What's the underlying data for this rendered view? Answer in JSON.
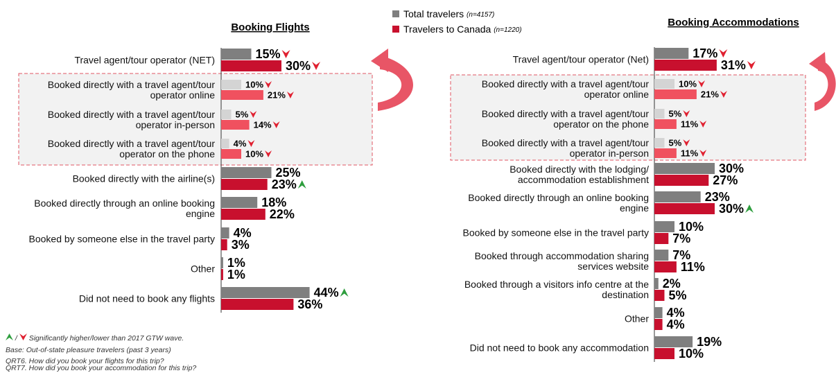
{
  "chart_data": [
    {
      "type": "bar",
      "orientation": "horizontal",
      "title": "Booking Flights",
      "categories": [
        "Travel agent/tour operator (NET)",
        "Booked directly with a travel agent/tour operator online",
        "Booked directly with a travel agent/tour operator in-person",
        "Booked directly with a travel agent/tour operator on the phone",
        "Booked directly with the airline(s)",
        "Booked directly through an online booking engine",
        "Booked by someone else in the travel party",
        "Other",
        "Did not need to book any flights"
      ],
      "highlight": [
        1,
        2,
        3
      ],
      "series": [
        {
          "name": "Total travelers",
          "n_label": "(n=4157)",
          "color": "#7f7f7f",
          "highlight_color": "#d4d4d4",
          "values": [
            15,
            10,
            5,
            4,
            25,
            18,
            4,
            1,
            44
          ],
          "value_labels": [
            "15%",
            "10%",
            "5%",
            "4%",
            "25%",
            "18%",
            "4%",
            "1%",
            "44%"
          ],
          "significance": [
            "lower",
            "lower",
            "lower",
            "lower",
            null,
            null,
            null,
            null,
            "higher"
          ]
        },
        {
          "name": "Travelers to Canada",
          "n_label": "(n=1220)",
          "color": "#c8102e",
          "highlight_color": "#f0515f",
          "values": [
            30,
            21,
            14,
            10,
            23,
            22,
            3,
            1,
            36
          ],
          "value_labels": [
            "30%",
            "21%",
            "14%",
            "10%",
            "23%",
            "22%",
            "3%",
            "1%",
            "36%"
          ],
          "significance": [
            "lower",
            "lower",
            "lower",
            "lower",
            "higher",
            null,
            null,
            null,
            null
          ]
        }
      ]
    },
    {
      "type": "bar",
      "orientation": "horizontal",
      "title": "Booking Accommodations",
      "categories": [
        "Travel agent/tour operator (Net)",
        "Booked directly with a travel agent/tour operator online",
        "Booked directly with a travel agent/tour operator on the phone",
        "Booked directly with a travel agent/tour operator in-person",
        "Booked directly with the lodging/ accommodation establishment",
        "Booked directly through an online booking engine",
        "Booked by someone else in the travel party",
        "Booked through accommodation sharing services website",
        "Booked through a visitors info centre at the destination",
        "Other",
        "Did not need to book any accommodation"
      ],
      "highlight": [
        1,
        2,
        3
      ],
      "series": [
        {
          "name": "Total travelers",
          "color": "#7f7f7f",
          "highlight_color": "#d4d4d4",
          "values": [
            17,
            10,
            5,
            5,
            30,
            23,
            10,
            7,
            2,
            4,
            19
          ],
          "value_labels": [
            "17%",
            "10%",
            "5%",
            "5%",
            "30%",
            "23%",
            "10%",
            "7%",
            "2%",
            "4%",
            "19%"
          ],
          "significance": [
            "lower",
            "lower",
            "lower",
            "lower",
            null,
            null,
            null,
            null,
            null,
            null,
            null
          ]
        },
        {
          "name": "Travelers to Canada",
          "color": "#c8102e",
          "highlight_color": "#f0515f",
          "values": [
            31,
            21,
            11,
            11,
            27,
            30,
            7,
            11,
            5,
            4,
            10
          ],
          "value_labels": [
            "31%",
            "21%",
            "11%",
            "11%",
            "27%",
            "30%",
            "7%",
            "11%",
            "5%",
            "4%",
            "10%"
          ],
          "significance": [
            "lower",
            "lower",
            "lower",
            "lower",
            null,
            "higher",
            null,
            null,
            null,
            null,
            null
          ]
        }
      ]
    }
  ],
  "footnotes": {
    "significance_separator": "/",
    "significance_text": "Significantly higher/lower than 2017 GTW wave.",
    "lines": [
      "Base: Out-of-state pleasure travelers (past 3 years)",
      "QRT6. How did you book your flights for this trip?",
      "QRT7. How did you book your accommodation for this trip?"
    ]
  }
}
